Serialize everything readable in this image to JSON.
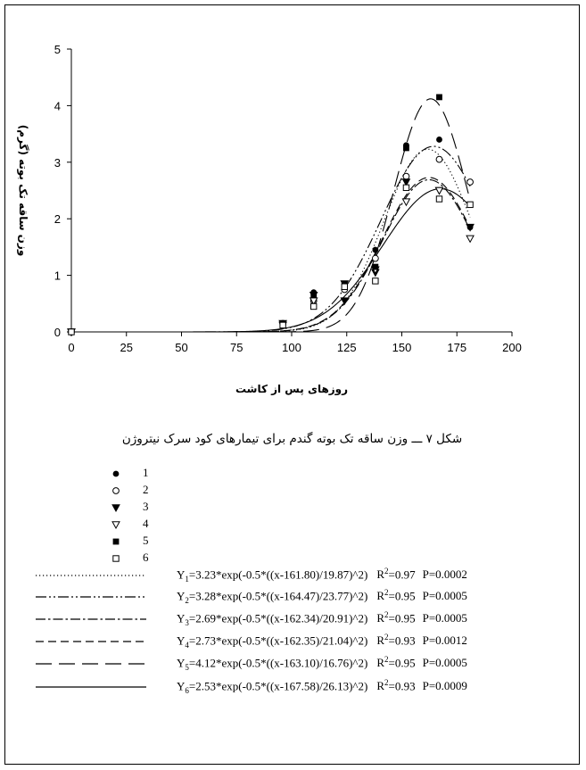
{
  "chart_data": {
    "type": "scatter",
    "xlabel": "روزهای پس از کاشت",
    "ylabel": "وزن ساقه تک بوته (گرم)",
    "xlim": [
      0,
      200
    ],
    "ylim": [
      0,
      5
    ],
    "xticks": [
      0,
      25,
      50,
      75,
      100,
      125,
      150,
      175,
      200
    ],
    "yticks": [
      0,
      1,
      2,
      3,
      4,
      5
    ],
    "grid": false,
    "legend": "below",
    "x": [
      0,
      96,
      110,
      124,
      138,
      152,
      167,
      181
    ],
    "series": [
      {
        "name": "1",
        "marker": "filled-circle",
        "values": [
          0,
          0.15,
          0.7,
          0.8,
          1.45,
          3.3,
          3.4,
          1.85
        ],
        "fit": {
          "a": 3.23,
          "x0": 161.8,
          "b": 19.87,
          "line": "dotted"
        }
      },
      {
        "name": "2",
        "marker": "open-circle",
        "values": [
          0,
          0.15,
          0.55,
          0.75,
          1.3,
          2.75,
          3.05,
          2.65
        ],
        "fit": {
          "a": 3.28,
          "x0": 164.47,
          "b": 23.77,
          "line": "dash-dot-dot"
        }
      },
      {
        "name": "3",
        "marker": "filled-triangle",
        "values": [
          0,
          0.12,
          0.65,
          0.55,
          1.05,
          2.65,
          2.5,
          1.85
        ],
        "fit": {
          "a": 2.69,
          "x0": 162.34,
          "b": 20.91,
          "line": "dash-dot"
        }
      },
      {
        "name": "4",
        "marker": "open-triangle",
        "values": [
          0,
          0.15,
          0.55,
          0.85,
          1.1,
          2.3,
          2.5,
          1.65
        ],
        "fit": {
          "a": 2.73,
          "x0": 162.35,
          "b": 21.04,
          "line": "dashed"
        }
      },
      {
        "name": "5",
        "marker": "filled-square",
        "values": [
          0,
          0.15,
          0.65,
          0.85,
          1.15,
          3.25,
          4.15,
          2.25
        ],
        "fit": {
          "a": 4.12,
          "x0": 163.1,
          "b": 16.76,
          "line": "long-dash"
        }
      },
      {
        "name": "6",
        "marker": "open-square",
        "values": [
          0,
          0.12,
          0.45,
          0.8,
          0.9,
          2.55,
          2.35,
          2.25
        ],
        "fit": {
          "a": 2.53,
          "x0": 167.58,
          "b": 26.13,
          "line": "solid"
        }
      }
    ]
  },
  "caption": "شکل ۷ ـــ وزن ساقه تک بوته گندم برای تیمارهای کود سرک نیتروژن",
  "equations": [
    {
      "y": "Y",
      "sub": "1",
      "expr": "=3.23*exp(-0.5*((x-161.80)/19.87)^2)",
      "r": "R",
      "sup": "2",
      "r2": "=0.97",
      "p": "P=0.0002"
    },
    {
      "y": "Y",
      "sub": "2",
      "expr": "=3.28*exp(-0.5*((x-164.47)/23.77)^2)",
      "r": "R",
      "sup": "2",
      "r2": "=0.95",
      "p": "P=0.0005"
    },
    {
      "y": "Y",
      "sub": "3",
      "expr": "=2.69*exp(-0.5*((x-162.34)/20.91)^2)",
      "r": "R",
      "sup": "2",
      "r2": "=0.95",
      "p": "P=0.0005"
    },
    {
      "y": "Y",
      "sub": "4",
      "expr": "=2.73*exp(-0.5*((x-162.35)/21.04)^2)",
      "r": "R",
      "sup": "2",
      "r2": "=0.93",
      "p": "P=0.0012"
    },
    {
      "y": "Y",
      "sub": "5",
      "expr": "=4.12*exp(-0.5*((x-163.10)/16.76)^2)",
      "r": "R",
      "sup": "2",
      "r2": "=0.95",
      "p": "P=0.0005"
    },
    {
      "y": "Y",
      "sub": "6",
      "expr": "=2.53*exp(-0.5*((x-167.58)/26.13)^2)",
      "r": "R",
      "sup": "2",
      "r2": "=0.93",
      "p": "P=0.0009"
    }
  ]
}
